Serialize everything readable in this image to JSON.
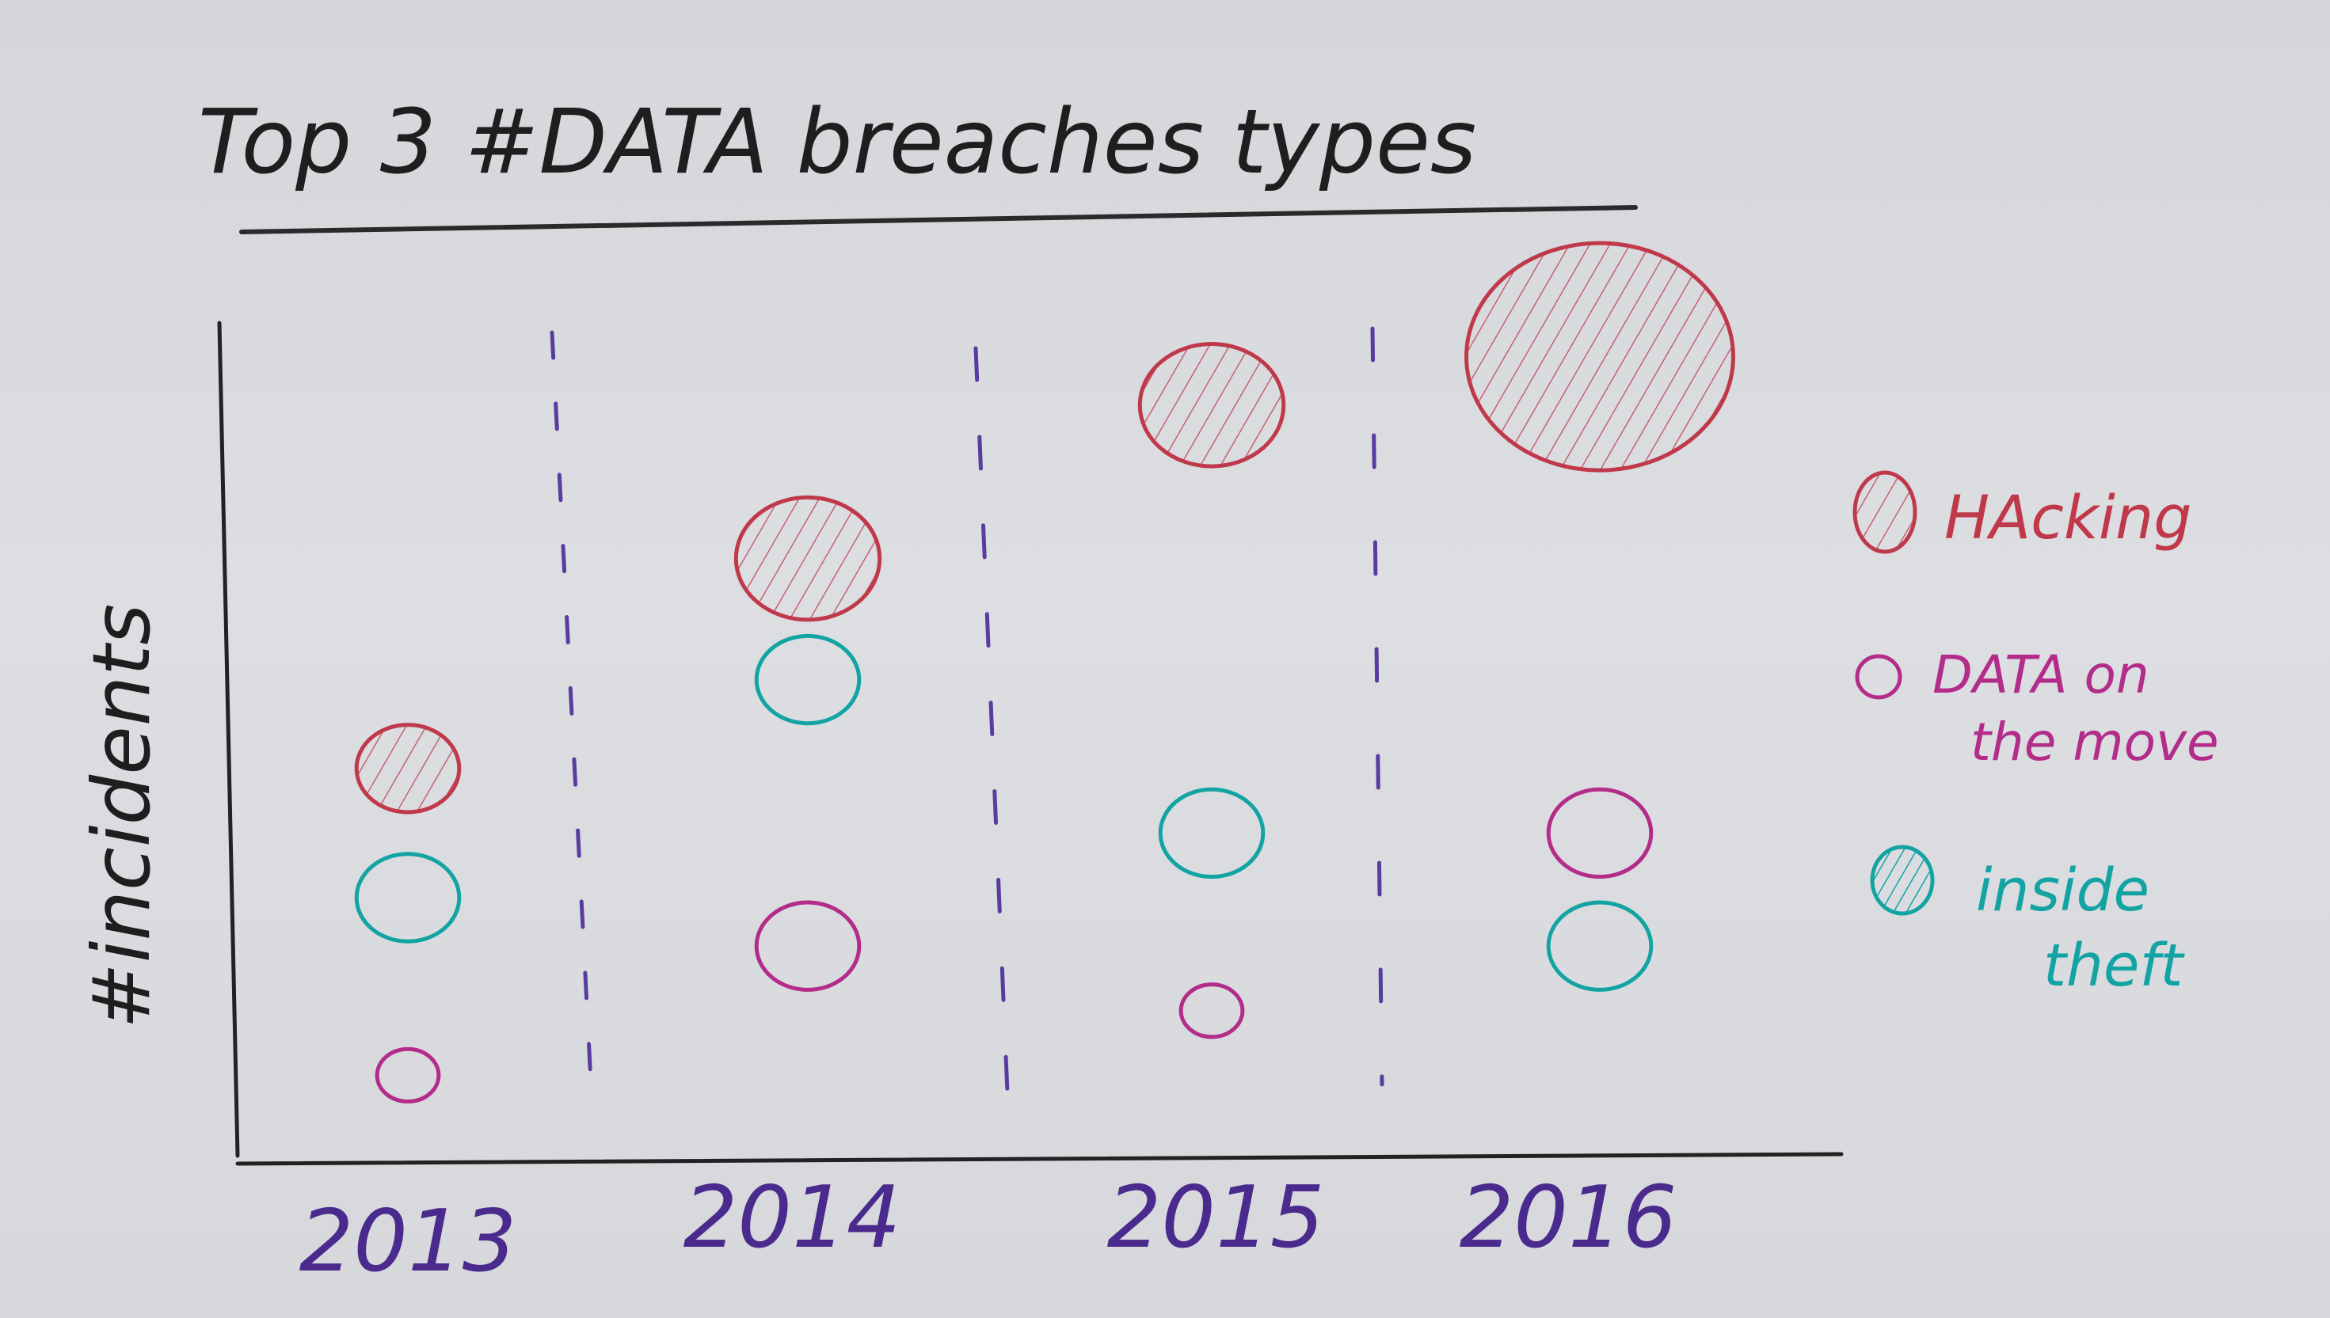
{
  "chart_data": {
    "type": "scatter",
    "title": "Top 3 #DATA breaches types",
    "xlabel": "",
    "ylabel": "#incidents",
    "categories": [
      "2013",
      "2014",
      "2015",
      "2016"
    ],
    "ylim": [
      0,
      10
    ],
    "grid": false,
    "legend_position": "right",
    "series": [
      {
        "name": "HAcking",
        "color": "#c0394a",
        "hatched": true,
        "values": [
          4.6,
          7.2,
          9.1,
          9.7
        ],
        "sizes": [
          2,
          3,
          3,
          6
        ]
      },
      {
        "name": "DATA on the move",
        "color": "#b32c8a",
        "hatched": false,
        "values": [
          0.8,
          2.4,
          1.6,
          3.8
        ],
        "sizes": [
          1,
          2,
          1,
          2
        ]
      },
      {
        "name": "inside theft",
        "color": "#13a3a3",
        "hatched": false,
        "values": [
          3.0,
          5.7,
          3.8,
          2.4
        ],
        "sizes": [
          2,
          2,
          2,
          2
        ]
      }
    ]
  }
}
